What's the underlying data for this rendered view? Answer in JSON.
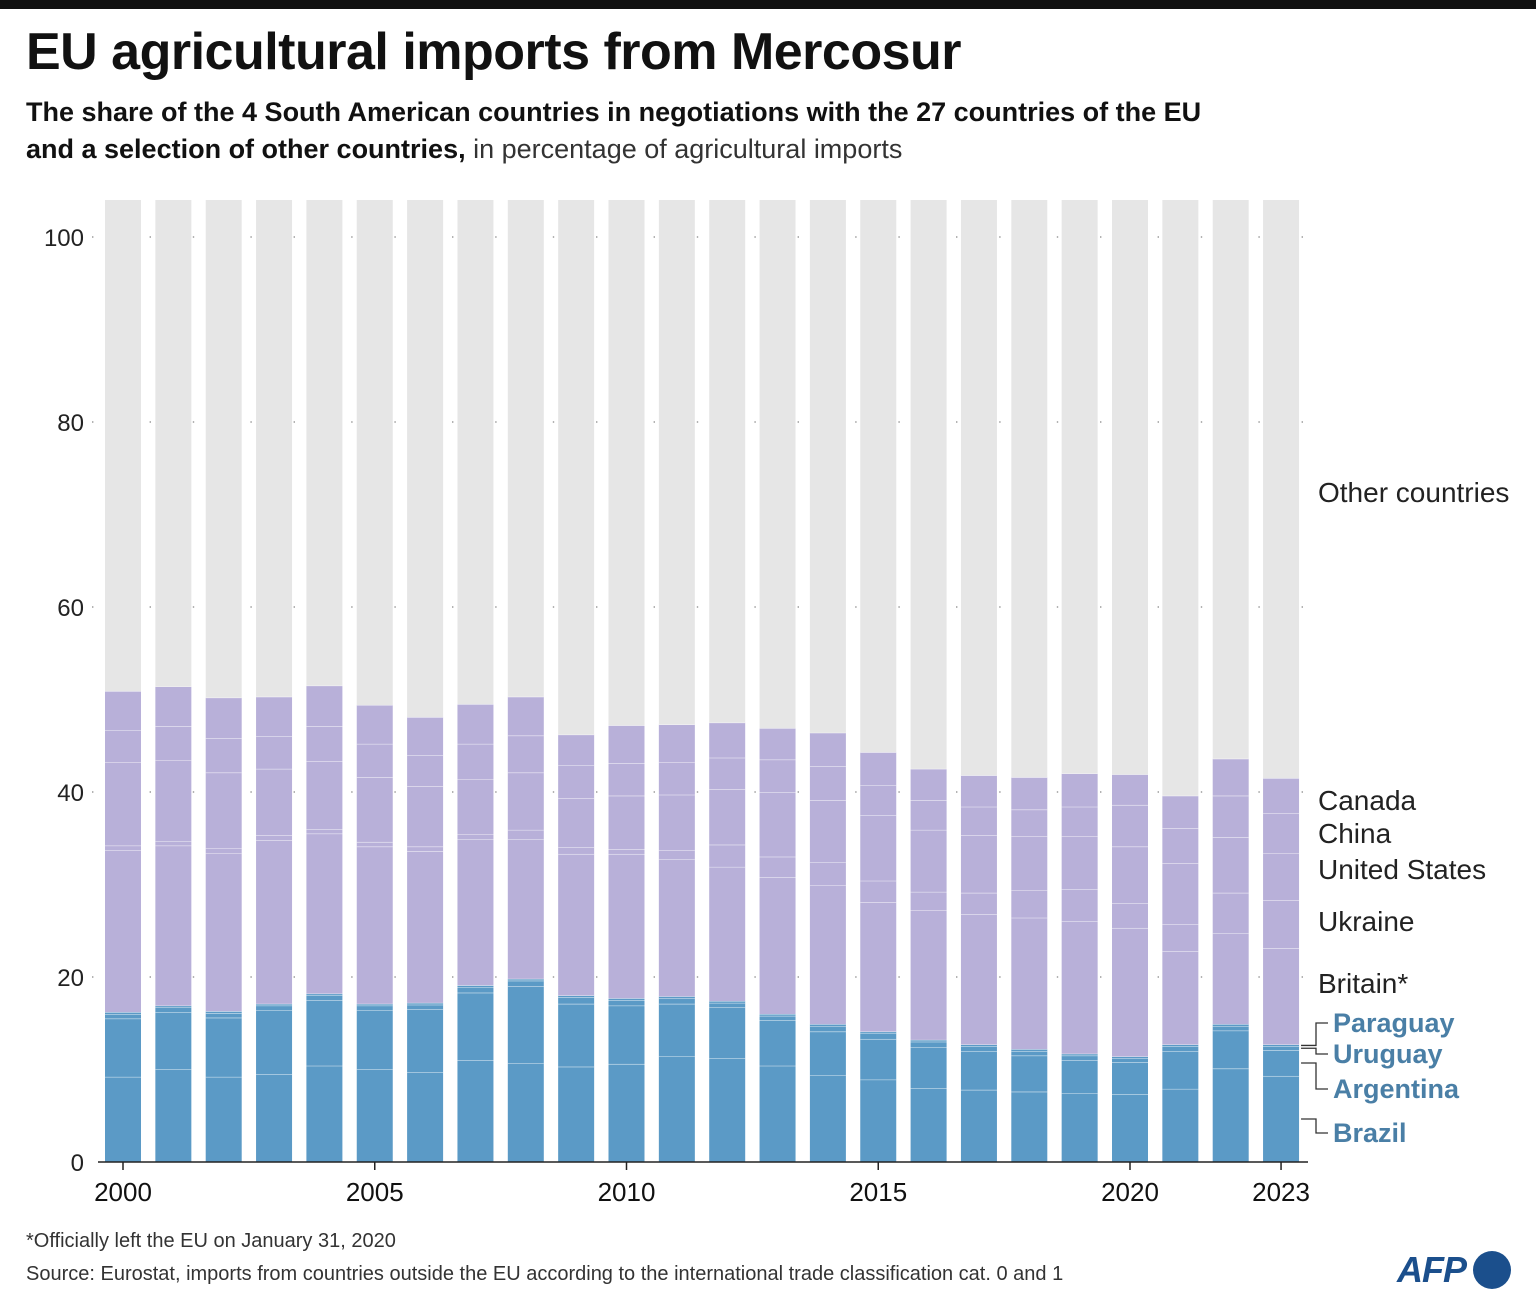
{
  "header": {
    "title": "EU agricultural imports from Mercosur",
    "subtitle_bold_1": "The share of the 4 South American countries in negotiations with the 27 countries of the EU",
    "subtitle_bold_2": "and a selection of other countries,",
    "subtitle_light": "in percentage of agricultural imports"
  },
  "footer": {
    "footnote": "*Officially left the EU on January 31, 2020",
    "source": "Source: Eurostat, imports from countries outside the EU according to the international trade classification cat. 0 and 1",
    "logo_text": "AFP"
  },
  "colors": {
    "mercosur": "#5b9ac6",
    "others_selected": "#b8b0d9",
    "other_countries": "#e6e6e6",
    "mercosur_label": "#4a7fa6",
    "axis": "#222222"
  },
  "chart_data": {
    "type": "bar",
    "stacked": true,
    "ylim": [
      0,
      100
    ],
    "yticks": [
      0,
      20,
      40,
      60,
      80,
      100
    ],
    "x": [
      2000,
      2001,
      2002,
      2003,
      2004,
      2005,
      2006,
      2007,
      2008,
      2009,
      2010,
      2011,
      2012,
      2013,
      2014,
      2015,
      2016,
      2017,
      2018,
      2019,
      2020,
      2021,
      2022,
      2023
    ],
    "xticks": [
      "2000",
      "2005",
      "2010",
      "2015",
      "2020",
      "2023"
    ],
    "xtick_years": [
      2000,
      2005,
      2010,
      2015,
      2020,
      2023
    ],
    "series": [
      {
        "name": "Brazil",
        "group": "mercosur",
        "values": [
          9.2,
          10.0,
          9.2,
          9.5,
          10.4,
          10.0,
          9.7,
          11.0,
          10.7,
          10.3,
          10.6,
          11.4,
          11.2,
          10.4,
          9.4,
          8.9,
          8.0,
          7.8,
          7.6,
          7.4,
          7.3,
          7.9,
          10.1,
          9.3
        ]
      },
      {
        "name": "Argentina",
        "group": "mercosur",
        "values": [
          6.3,
          6.2,
          6.4,
          6.9,
          7.1,
          6.4,
          6.8,
          7.3,
          8.3,
          6.8,
          6.3,
          5.7,
          5.5,
          4.9,
          4.7,
          4.4,
          4.4,
          4.2,
          3.9,
          3.6,
          3.5,
          4.1,
          4.1,
          2.8
        ]
      },
      {
        "name": "Uruguay",
        "group": "mercosur",
        "values": [
          0.5,
          0.5,
          0.5,
          0.5,
          0.5,
          0.5,
          0.5,
          0.6,
          0.6,
          0.7,
          0.6,
          0.6,
          0.5,
          0.5,
          0.6,
          0.6,
          0.6,
          0.5,
          0.5,
          0.5,
          0.4,
          0.5,
          0.5,
          0.4
        ]
      },
      {
        "name": "Paraguay",
        "group": "mercosur",
        "values": [
          0.2,
          0.2,
          0.2,
          0.2,
          0.2,
          0.2,
          0.2,
          0.2,
          0.2,
          0.2,
          0.2,
          0.2,
          0.2,
          0.2,
          0.2,
          0.2,
          0.2,
          0.2,
          0.2,
          0.2,
          0.2,
          0.2,
          0.2,
          0.2
        ]
      },
      {
        "name": "Britain*",
        "group": "others_selected",
        "values": [
          17.5,
          17.3,
          17.1,
          17.7,
          17.3,
          17.0,
          16.4,
          15.8,
          15.1,
          15.3,
          15.6,
          14.8,
          14.5,
          14.8,
          15.0,
          14.0,
          14.0,
          14.1,
          14.2,
          14.3,
          13.9,
          10.1,
          9.8,
          10.4
        ]
      },
      {
        "name": "Ukraine",
        "group": "others_selected",
        "values": [
          0.5,
          0.5,
          0.5,
          0.5,
          0.5,
          0.5,
          0.5,
          0.5,
          1.0,
          0.7,
          0.5,
          1.0,
          2.4,
          2.2,
          2.5,
          2.3,
          2.0,
          2.3,
          3.0,
          3.5,
          2.7,
          2.9,
          4.4,
          5.2
        ]
      },
      {
        "name": "United States",
        "group": "others_selected",
        "values": [
          9.0,
          8.7,
          8.2,
          7.2,
          7.3,
          7.0,
          6.5,
          6.0,
          6.2,
          5.3,
          5.8,
          6.0,
          6.0,
          7.0,
          6.7,
          7.1,
          6.7,
          6.2,
          5.8,
          5.7,
          6.1,
          6.6,
          6.0,
          5.1
        ]
      },
      {
        "name": "China",
        "group": "others_selected",
        "values": [
          3.5,
          3.7,
          3.7,
          3.5,
          3.8,
          3.6,
          3.4,
          3.8,
          4.0,
          3.6,
          3.5,
          3.5,
          3.4,
          3.5,
          3.7,
          3.2,
          3.2,
          3.1,
          2.9,
          3.2,
          4.5,
          3.8,
          4.5,
          4.3
        ]
      },
      {
        "name": "Canada",
        "group": "others_selected",
        "values": [
          4.2,
          4.3,
          4.4,
          4.3,
          4.4,
          4.2,
          4.1,
          4.3,
          4.2,
          3.3,
          4.1,
          4.1,
          3.8,
          3.4,
          3.6,
          3.6,
          3.4,
          3.4,
          3.5,
          3.6,
          3.3,
          3.5,
          4.0,
          3.8
        ]
      },
      {
        "name": "Other countries",
        "group": "other_countries",
        "values": [
          53.1,
          52.6,
          53.8,
          53.7,
          52.5,
          54.6,
          55.9,
          54.5,
          53.7,
          57.8,
          56.8,
          56.7,
          56.5,
          57.1,
          57.6,
          59.7,
          61.5,
          62.2,
          62.4,
          62.0,
          62.1,
          64.4,
          60.4,
          62.5
        ]
      }
    ]
  }
}
